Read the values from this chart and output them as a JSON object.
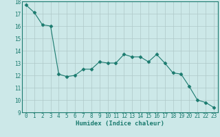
{
  "xlabel": "Humidex (Indice chaleur)",
  "x": [
    0,
    1,
    2,
    3,
    4,
    5,
    6,
    7,
    8,
    9,
    10,
    11,
    12,
    13,
    14,
    15,
    16,
    17,
    18,
    19,
    20,
    21,
    22,
    23
  ],
  "y": [
    17.7,
    17.1,
    16.1,
    16.0,
    12.1,
    11.9,
    12.0,
    12.5,
    12.5,
    13.1,
    13.0,
    13.0,
    13.7,
    13.5,
    13.5,
    13.1,
    13.7,
    13.0,
    12.2,
    12.1,
    11.1,
    10.0,
    9.8,
    9.4
  ],
  "line_color": "#1a7a6e",
  "marker": "D",
  "marker_size": 2.5,
  "bg_color": "#cce8e8",
  "grid_color": "#aec8c8",
  "ylim": [
    9,
    18
  ],
  "xlim": [
    -0.5,
    23.5
  ],
  "yticks": [
    9,
    10,
    11,
    12,
    13,
    14,
    15,
    16,
    17,
    18
  ],
  "xticks": [
    0,
    1,
    2,
    3,
    4,
    5,
    6,
    7,
    8,
    9,
    10,
    11,
    12,
    13,
    14,
    15,
    16,
    17,
    18,
    19,
    20,
    21,
    22,
    23
  ],
  "label_fontsize": 6.5,
  "tick_fontsize": 5.5
}
